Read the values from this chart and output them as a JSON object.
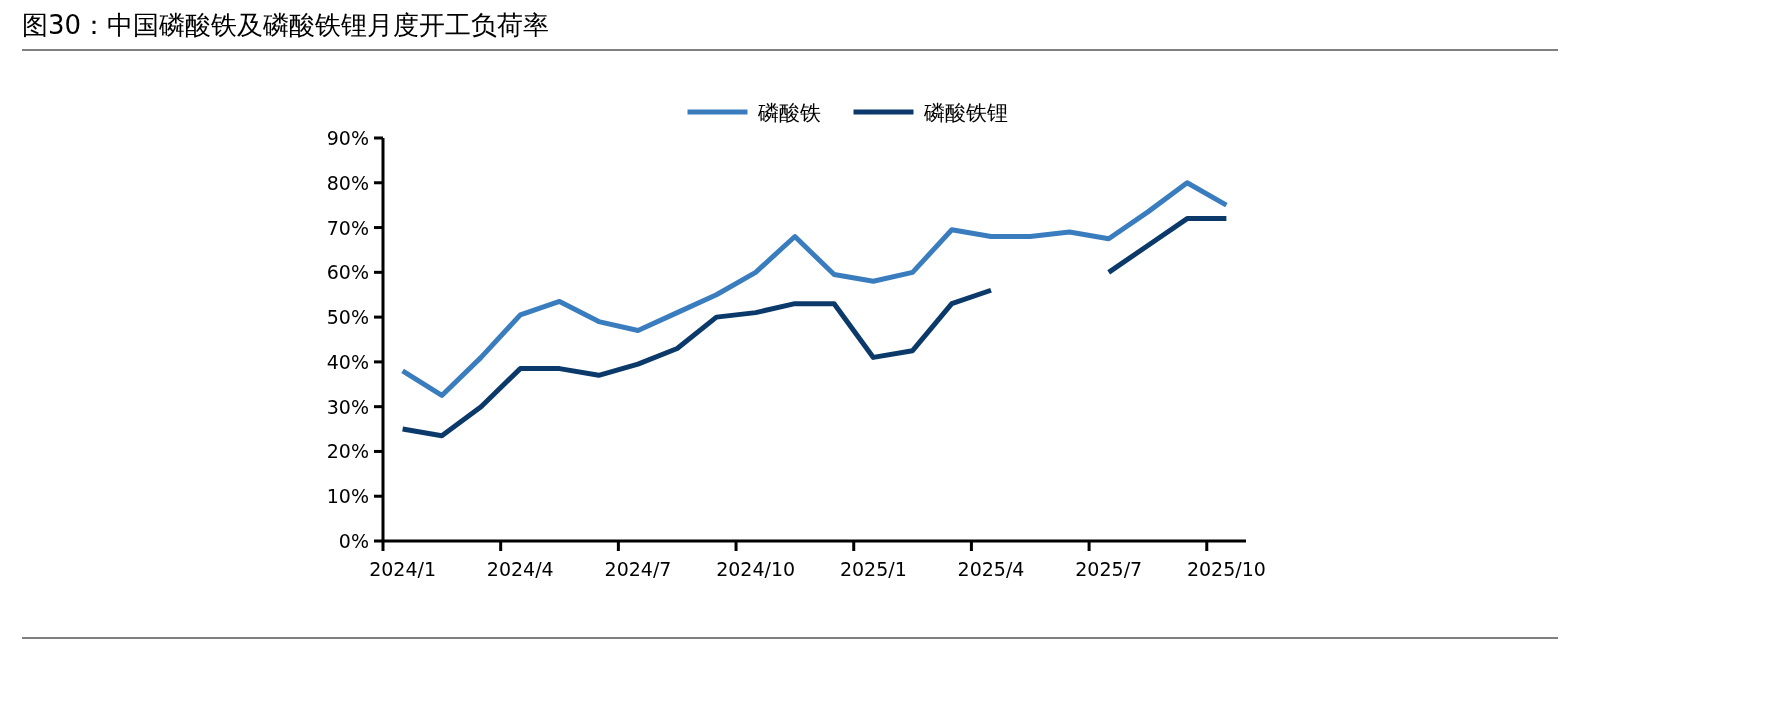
{
  "chart_data": {
    "type": "line",
    "title": "图30：中国磷酸铁及磷酸铁锂月度开工负荷率",
    "categories": [
      "2024/1",
      null,
      null,
      "2024/4",
      null,
      null,
      "2024/7",
      null,
      null,
      "2024/10",
      null,
      null,
      "2025/1",
      null,
      null,
      "2025/4",
      null,
      null,
      "2025/7",
      null,
      null,
      "2025/10"
    ],
    "series": [
      {
        "name": "磷酸铁",
        "color": "#3a7dbf",
        "values": [
          38,
          32.5,
          41,
          50.5,
          53.5,
          49,
          47,
          51,
          55,
          60,
          68,
          59.5,
          58,
          60,
          69.5,
          68,
          68,
          69,
          67.5,
          73.5,
          80,
          75
        ]
      },
      {
        "name": "磷酸铁锂",
        "color": "#0b3a6a",
        "values": [
          25,
          23.5,
          30,
          38.5,
          38.5,
          37,
          39.5,
          43,
          50,
          51,
          53,
          53,
          41,
          42.5,
          53,
          56,
          null,
          null,
          60,
          66,
          72,
          72
        ]
      }
    ],
    "ylim": [
      0,
      90
    ],
    "yticks": [
      {
        "value": 0,
        "label": "0%"
      },
      {
        "value": 10,
        "label": "10%"
      },
      {
        "value": 20,
        "label": "20%"
      },
      {
        "value": 30,
        "label": "30%"
      },
      {
        "value": 40,
        "label": "40%"
      },
      {
        "value": 50,
        "label": "50%"
      },
      {
        "value": 60,
        "label": "60%"
      },
      {
        "value": 70,
        "label": "70%"
      },
      {
        "value": 80,
        "label": "80%"
      },
      {
        "value": 90,
        "label": "90%"
      }
    ],
    "legend": "top"
  }
}
